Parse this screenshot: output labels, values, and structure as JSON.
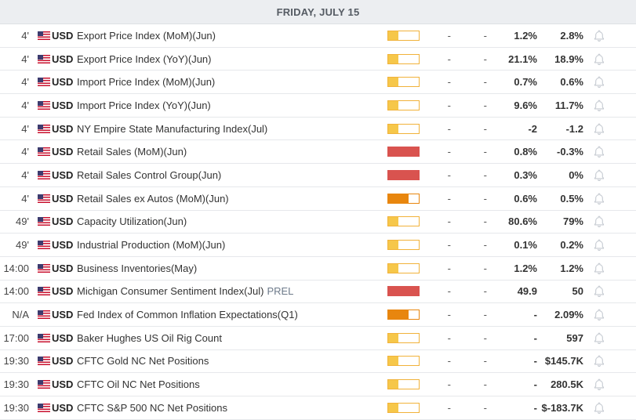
{
  "day_header": "FRIDAY, JULY 15",
  "colors": {
    "impact_low": "#f6c74a",
    "impact_medium": "#e8860e",
    "impact_high": "#d9534f"
  },
  "rows": [
    {
      "time": "4'",
      "currency": "USD",
      "event": "Export Price Index (MoM)(Jun)",
      "tag": "",
      "impact": "low",
      "actual": "-",
      "forecast": "-",
      "previous": "1.2%",
      "consensus": "2.8%"
    },
    {
      "time": "4'",
      "currency": "USD",
      "event": "Export Price Index (YoY)(Jun)",
      "tag": "",
      "impact": "low",
      "actual": "-",
      "forecast": "-",
      "previous": "21.1%",
      "consensus": "18.9%"
    },
    {
      "time": "4'",
      "currency": "USD",
      "event": "Import Price Index (MoM)(Jun)",
      "tag": "",
      "impact": "low",
      "actual": "-",
      "forecast": "-",
      "previous": "0.7%",
      "consensus": "0.6%"
    },
    {
      "time": "4'",
      "currency": "USD",
      "event": "Import Price Index (YoY)(Jun)",
      "tag": "",
      "impact": "low",
      "actual": "-",
      "forecast": "-",
      "previous": "9.6%",
      "consensus": "11.7%"
    },
    {
      "time": "4'",
      "currency": "USD",
      "event": "NY Empire State Manufacturing Index(Jul)",
      "tag": "",
      "impact": "low",
      "actual": "-",
      "forecast": "-",
      "previous": "-2",
      "consensus": "-1.2"
    },
    {
      "time": "4'",
      "currency": "USD",
      "event": "Retail Sales (MoM)(Jun)",
      "tag": "",
      "impact": "high",
      "actual": "-",
      "forecast": "-",
      "previous": "0.8%",
      "consensus": "-0.3%"
    },
    {
      "time": "4'",
      "currency": "USD",
      "event": "Retail Sales Control Group(Jun)",
      "tag": "",
      "impact": "high",
      "actual": "-",
      "forecast": "-",
      "previous": "0.3%",
      "consensus": "0%"
    },
    {
      "time": "4'",
      "currency": "USD",
      "event": "Retail Sales ex Autos (MoM)(Jun)",
      "tag": "",
      "impact": "medium",
      "actual": "-",
      "forecast": "-",
      "previous": "0.6%",
      "consensus": "0.5%"
    },
    {
      "time": "49'",
      "currency": "USD",
      "event": "Capacity Utilization(Jun)",
      "tag": "",
      "impact": "low",
      "actual": "-",
      "forecast": "-",
      "previous": "80.6%",
      "consensus": "79%"
    },
    {
      "time": "49'",
      "currency": "USD",
      "event": "Industrial Production (MoM)(Jun)",
      "tag": "",
      "impact": "low",
      "actual": "-",
      "forecast": "-",
      "previous": "0.1%",
      "consensus": "0.2%"
    },
    {
      "time": "14:00",
      "currency": "USD",
      "event": "Business Inventories(May)",
      "tag": "",
      "impact": "low",
      "actual": "-",
      "forecast": "-",
      "previous": "1.2%",
      "consensus": "1.2%"
    },
    {
      "time": "14:00",
      "currency": "USD",
      "event": "Michigan Consumer Sentiment Index(Jul)",
      "tag": "PREL",
      "impact": "high",
      "actual": "-",
      "forecast": "-",
      "previous": "49.9",
      "consensus": "50"
    },
    {
      "time": "N/A",
      "currency": "USD",
      "event": "Fed Index of Common Inflation Expectations(Q1)",
      "tag": "",
      "impact": "medium",
      "actual": "-",
      "forecast": "-",
      "previous": "-",
      "consensus": "2.09%"
    },
    {
      "time": "17:00",
      "currency": "USD",
      "event": "Baker Hughes US Oil Rig Count",
      "tag": "",
      "impact": "low",
      "actual": "-",
      "forecast": "-",
      "previous": "-",
      "consensus": "597"
    },
    {
      "time": "19:30",
      "currency": "USD",
      "event": "CFTC Gold NC Net Positions",
      "tag": "",
      "impact": "low",
      "actual": "-",
      "forecast": "-",
      "previous": "-",
      "consensus": "$145.7K"
    },
    {
      "time": "19:30",
      "currency": "USD",
      "event": "CFTC Oil NC Net Positions",
      "tag": "",
      "impact": "low",
      "actual": "-",
      "forecast": "-",
      "previous": "-",
      "consensus": "280.5K"
    },
    {
      "time": "19:30",
      "currency": "USD",
      "event": "CFTC S&P 500 NC Net Positions",
      "tag": "",
      "impact": "low",
      "actual": "-",
      "forecast": "-",
      "previous": "-",
      "consensus": "$-183.7K"
    }
  ]
}
